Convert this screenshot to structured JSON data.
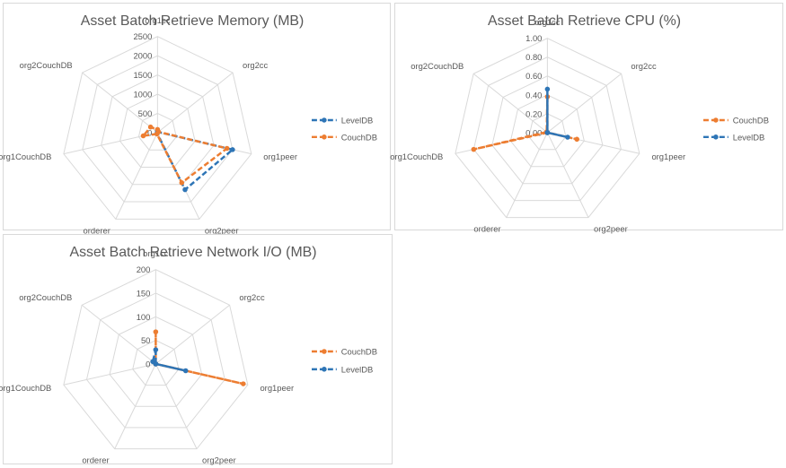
{
  "chart_data": [
    {
      "type": "radar",
      "title": "Asset Batch Retrieve Memory (MB)",
      "categories": [
        "org1cc",
        "org2cc",
        "org1peer",
        "org2peer",
        "orderer",
        "org1CouchDB",
        "org2CouchDB"
      ],
      "ylim": [
        0,
        2500
      ],
      "ticks": [
        "2500",
        "2000",
        "1500",
        "1000",
        "500",
        "0"
      ],
      "tick_values": [
        2500,
        2000,
        1500,
        1000,
        500,
        0
      ],
      "grid": true,
      "legend_position": "right",
      "series": [
        {
          "name": "LevelDB",
          "color": "#2e75b6",
          "values": [
            55,
            25,
            2000,
            1650,
            20,
            0,
            5
          ]
        },
        {
          "name": "CouchDB",
          "color": "#ed7d31",
          "values": [
            80,
            30,
            1850,
            1450,
            40,
            380,
            230
          ]
        }
      ]
    },
    {
      "type": "radar",
      "title": "Asset Batch Retrieve CPU (%)",
      "categories": [
        "org1cc",
        "org2cc",
        "org1peer",
        "org2peer",
        "orderer",
        "org1CouchDB",
        "org2CouchDB"
      ],
      "ylim": [
        0,
        1.0
      ],
      "ticks": [
        "1.00",
        "0.80",
        "0.60",
        "0.40",
        "0.20",
        "0.00"
      ],
      "tick_values": [
        1.0,
        0.8,
        0.6,
        0.4,
        0.2,
        0.0
      ],
      "grid": true,
      "legend_position": "right",
      "series": [
        {
          "name": "CouchDB",
          "color": "#ed7d31",
          "values": [
            0.38,
            0.0,
            0.32,
            0.0,
            0.0,
            0.8,
            0.01
          ]
        },
        {
          "name": "LevelDB",
          "color": "#2e75b6",
          "values": [
            0.46,
            0.0,
            0.22,
            0.0,
            0.0,
            0.0,
            0.0
          ]
        }
      ]
    },
    {
      "type": "radar",
      "title": "Asset Batch Retrieve Network I/O (MB)",
      "categories": [
        "org1cc",
        "org2cc",
        "org1peer",
        "org2peer",
        "orderer",
        "org1CouchDB",
        "org2CouchDB"
      ],
      "ylim": [
        0,
        200
      ],
      "ticks": [
        "200",
        "150",
        "100",
        "50",
        "0"
      ],
      "tick_values": [
        200,
        150,
        100,
        50,
        0
      ],
      "grid": true,
      "legend_position": "right",
      "series": [
        {
          "name": "CouchDB",
          "color": "#ed7d31",
          "values": [
            68,
            0,
            190,
            0,
            0,
            0,
            0
          ]
        },
        {
          "name": "LevelDB",
          "color": "#2e75b6",
          "values": [
            30,
            0,
            65,
            0,
            0,
            0,
            8
          ]
        }
      ]
    }
  ]
}
